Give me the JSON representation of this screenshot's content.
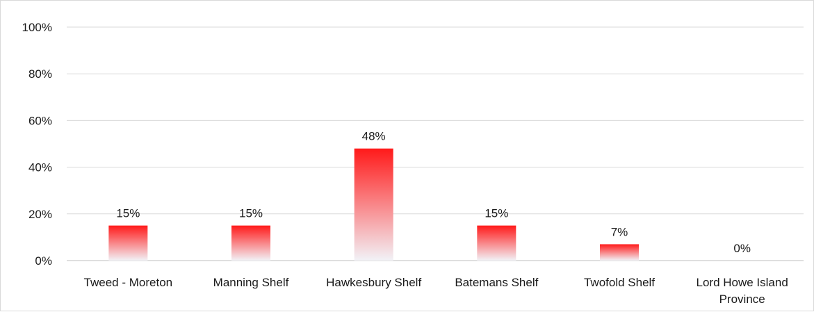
{
  "chart_data": {
    "type": "bar",
    "categories": [
      [
        "Tweed - Moreton"
      ],
      [
        "Manning Shelf"
      ],
      [
        "Hawkesbury Shelf"
      ],
      [
        "Batemans Shelf"
      ],
      [
        "Twofold Shelf"
      ],
      [
        "Lord Howe Island",
        "Province"
      ]
    ],
    "values": [
      15,
      15,
      48,
      15,
      7,
      0
    ],
    "data_labels": [
      "15%",
      "15%",
      "48%",
      "15%",
      "7%",
      "0%"
    ],
    "y_ticks": [
      {
        "value": 0,
        "label": "0%"
      },
      {
        "value": 20,
        "label": "20%"
      },
      {
        "value": 40,
        "label": "40%"
      },
      {
        "value": 60,
        "label": "60%"
      },
      {
        "value": 80,
        "label": "80%"
      },
      {
        "value": 100,
        "label": "100%"
      }
    ],
    "ylim": [
      0,
      100
    ],
    "grid": true,
    "legend": "none",
    "colors": {
      "bar_top": "#ff1a1a",
      "bar_bottom": "#f2f2f7",
      "grid": "#d9d9d9"
    }
  }
}
